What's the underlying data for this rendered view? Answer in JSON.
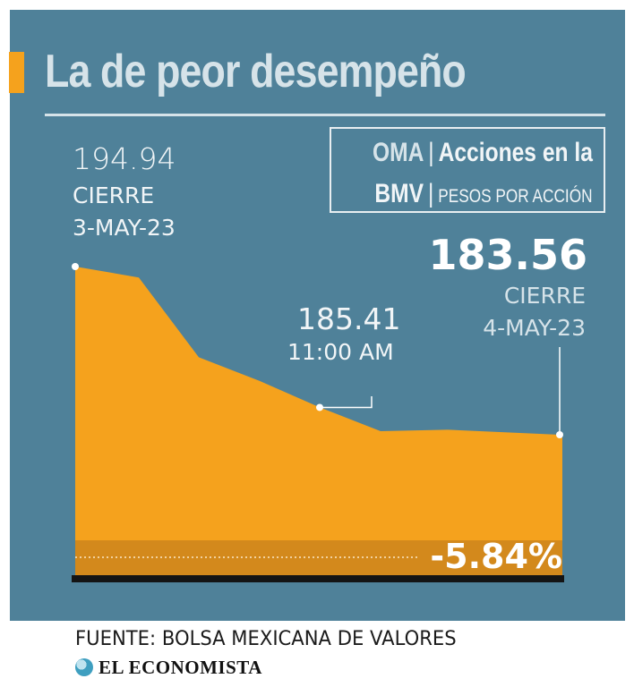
{
  "header": {
    "title": "La de peor desempeño"
  },
  "legend": {
    "ticker_line1": "OMA",
    "desc_line1": "Acciones en la",
    "ticker_line2": "BMV",
    "unit": "PESOS POR ACCIÓN"
  },
  "annotations": {
    "start": {
      "value": "194.94",
      "label": "CIERRE",
      "date": "3-MAY-23"
    },
    "mid": {
      "value": "185.41",
      "label": "11:00 AM"
    },
    "end": {
      "value": "183.56",
      "label": "CIERRE",
      "date": "4-MAY-23"
    },
    "change": "-5.84%"
  },
  "footer": {
    "source": "FUENTE: BOLSA MEXICANA DE VALORES",
    "brand": "EL ECONOMISTA"
  },
  "colors": {
    "background": "#4f8199",
    "area": "#f5a21d",
    "area_band": "#d3891c",
    "accent": "#f5a21d"
  },
  "chart_data": {
    "type": "area",
    "ylabel": "",
    "x": [
      0,
      1,
      2,
      3,
      4,
      5,
      6,
      7
    ],
    "values": [
      194.94,
      194.2,
      188.8,
      187.2,
      185.41,
      183.8,
      183.9,
      183.56
    ],
    "ylim": [
      180,
      200
    ],
    "grid": false
  }
}
